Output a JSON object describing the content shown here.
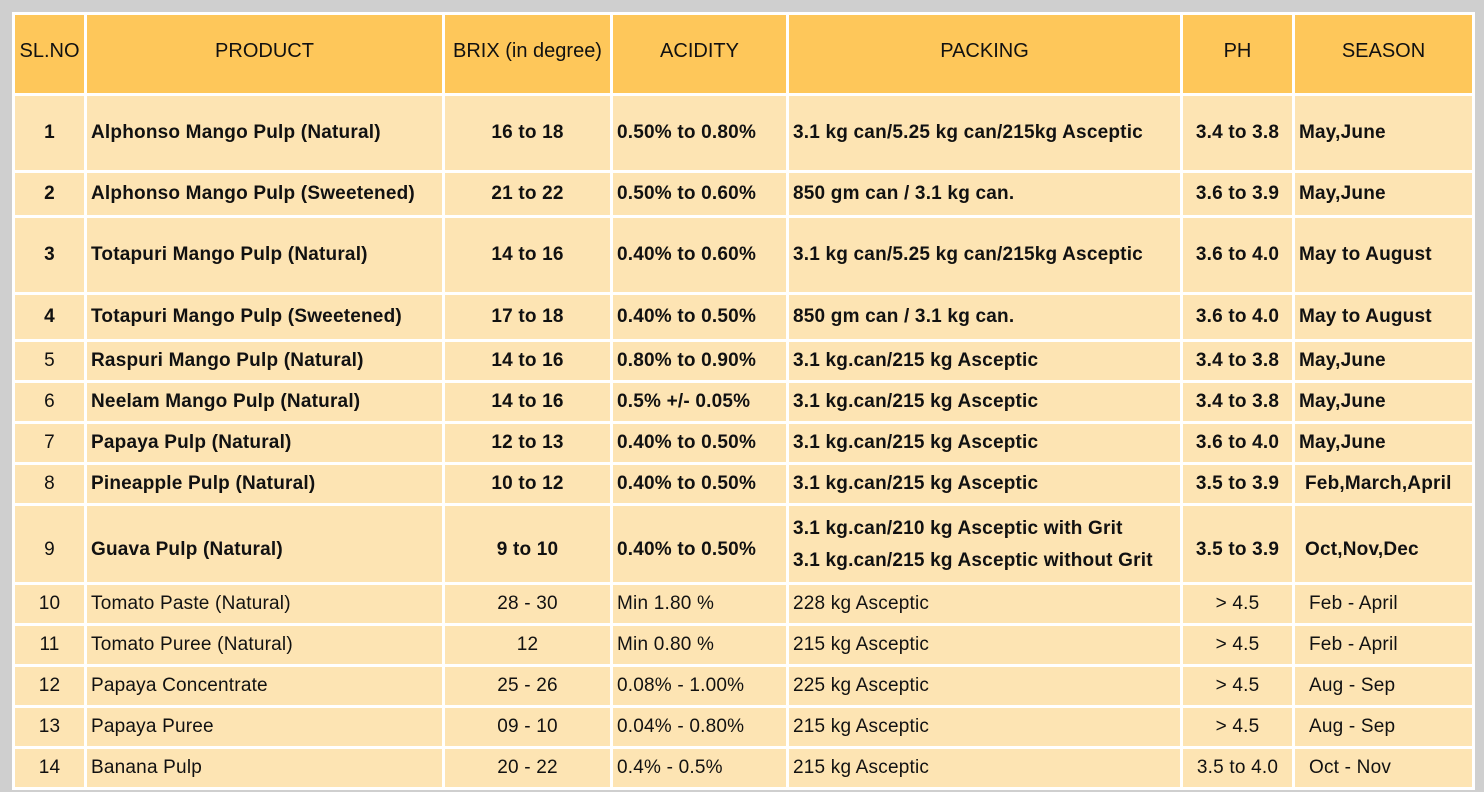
{
  "table": {
    "headers": [
      "SL.NO",
      "PRODUCT",
      "BRIX (in degree)",
      "ACIDITY",
      "PACKING",
      "PH",
      "SEASON"
    ],
    "rows": [
      {
        "no": "1",
        "product": "Alphonso Mango Pulp (Natural)",
        "brix": "16 to 18",
        "acidity": "0.50% to 0.80%",
        "packing": [
          "3.1 kg can/5.25 kg can/215kg Asceptic"
        ],
        "ph": "3.4 to 3.8",
        "season": "May,June"
      },
      {
        "no": "2",
        "product": "Alphonso Mango Pulp (Sweetened)",
        "brix": "21 to 22",
        "acidity": "0.50% to 0.60%",
        "packing": [
          "850 gm can / 3.1 kg can."
        ],
        "ph": "3.6 to 3.9",
        "season": "May,June"
      },
      {
        "no": "3",
        "product": "Totapuri Mango Pulp (Natural)",
        "brix": "14 to 16",
        "acidity": "0.40% to 0.60%",
        "packing": [
          "3.1 kg can/5.25 kg can/215kg Asceptic"
        ],
        "ph": "3.6 to 4.0",
        "season": "May to August"
      },
      {
        "no": "4",
        "product": "Totapuri Mango Pulp (Sweetened)",
        "brix": "17 to 18",
        "acidity": "0.40% to 0.50%",
        "packing": [
          "850 gm can / 3.1 kg can."
        ],
        "ph": "3.6 to 4.0",
        "season": "May to August"
      },
      {
        "no": "5",
        "product": "Raspuri Mango Pulp (Natural)",
        "brix": "14 to 16",
        "acidity": "0.80% to 0.90%",
        "packing": [
          "3.1 kg.can/215 kg Asceptic"
        ],
        "ph": "3.4 to 3.8",
        "season": "May,June"
      },
      {
        "no": "6",
        "product": "Neelam Mango Pulp (Natural)",
        "brix": "14 to 16",
        "acidity": "0.5% +/- 0.05%",
        "packing": [
          "3.1 kg.can/215 kg Asceptic"
        ],
        "ph": "3.4 to 3.8",
        "season": "May,June"
      },
      {
        "no": "7",
        "product": "Papaya Pulp (Natural)",
        "brix": "12 to 13",
        "acidity": "0.40% to 0.50%",
        "packing": [
          "3.1 kg.can/215 kg Asceptic"
        ],
        "ph": "3.6 to 4.0",
        "season": "May,June"
      },
      {
        "no": "8",
        "product": "Pineapple Pulp (Natural)",
        "brix": "10 to 12",
        "acidity": "0.40% to 0.50%",
        "packing": [
          "3.1 kg.can/215 kg Asceptic"
        ],
        "ph": "3.5 to 3.9",
        "season": "Feb,March,April"
      },
      {
        "no": "9",
        "product": "Guava Pulp (Natural)",
        "brix": "9 to 10",
        "acidity": "0.40% to 0.50%",
        "packing": [
          "3.1 kg.can/210 kg Asceptic with Grit",
          "3.1 kg.can/215 kg Asceptic without Grit"
        ],
        "ph": "3.5 to 3.9",
        "season": "Oct,Nov,Dec"
      },
      {
        "no": "10",
        "product": "Tomato Paste (Natural)",
        "brix": "28 - 30",
        "acidity": "Min 1.80 %",
        "packing": [
          "228 kg Asceptic"
        ],
        "ph": "> 4.5",
        "season": "Feb - April"
      },
      {
        "no": "11",
        "product": "Tomato Puree (Natural)",
        "brix": "12",
        "acidity": "Min 0.80 %",
        "packing": [
          "215 kg Asceptic"
        ],
        "ph": "> 4.5",
        "season": "Feb - April"
      },
      {
        "no": "12",
        "product": "Papaya Concentrate",
        "brix": "25 - 26",
        "acidity": "0.08% - 1.00%",
        "packing": [
          "225 kg Asceptic"
        ],
        "ph": "> 4.5",
        "season": "Aug - Sep"
      },
      {
        "no": "13",
        "product": "Papaya Puree",
        "brix": "09 - 10",
        "acidity": "0.04% - 0.80%",
        "packing": [
          "215 kg Asceptic"
        ],
        "ph": "> 4.5",
        "season": "Aug - Sep"
      },
      {
        "no": "14",
        "product": "Banana Pulp",
        "brix": "20 - 22",
        "acidity": "0.4% - 0.5%",
        "packing": [
          "215 kg Asceptic"
        ],
        "ph": "3.5 to 4.0",
        "season": "Oct - Nov"
      }
    ]
  },
  "colors": {
    "header_bg": "#fec75a",
    "row_bg": "#fde4b3",
    "grid_lines": "#ffffff",
    "page_bg": "#cfcfcf"
  }
}
